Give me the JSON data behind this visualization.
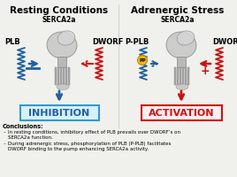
{
  "title_left": "Resting Conditions",
  "title_right": "Adrenergic Stress",
  "serca_label": "SERCA2a",
  "plb_label_left": "PLB",
  "dworf_label_left": "DWORF",
  "pplb_label": "P-PLB",
  "dworf_label_right": "DWORF",
  "pp_label": "PP",
  "inhibition_text": "INHIBITION",
  "activation_text": "ACTIVATION",
  "conclusions_title": "Conclusions:",
  "bullet1_line1": "In resting conditions, inhibitory effect of PLB prevails over DWORF’s on",
  "bullet1_line2": "SERCA2a function.",
  "bullet2_line1": "During adrenergic stress, phosphorylation of PLB (P-PLB) facilitates",
  "bullet2_line2": "DWORF binding to the pump enhancing SERCA2a activity.",
  "blue_color": "#2060a0",
  "red_color": "#cc1111",
  "yellow_color": "#f5b800",
  "inhibition_box_edge": "#3399cc",
  "inhibition_box_face": "#d8f0f8",
  "activation_box_edge": "#cc1111",
  "activation_box_face": "#fff0f0",
  "bg_color": "#f0f0ec",
  "protein_face": "#c8c8c8",
  "protein_edge": "#888888"
}
